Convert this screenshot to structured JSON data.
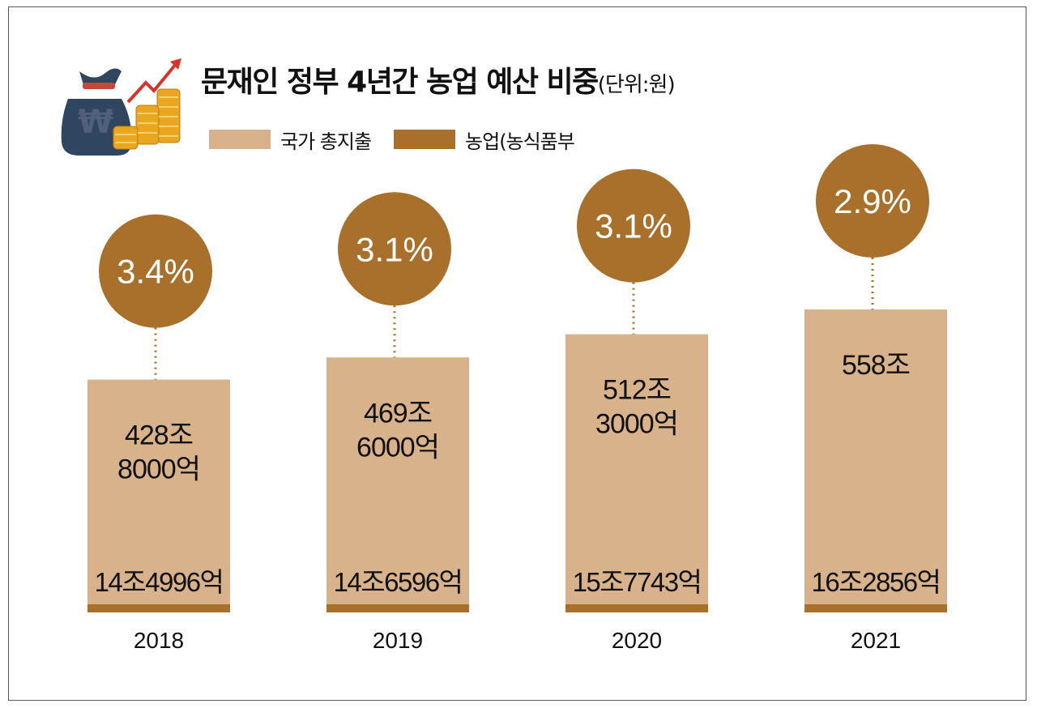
{
  "title": "문재인 정부 4년간 농업 예산 비중",
  "unit": "(단위:원)",
  "legend": [
    {
      "label": "국가 총지출",
      "color": "#d8b28a"
    },
    {
      "label": "농업(농식품부",
      "color": "#a8702a"
    }
  ],
  "icon": {
    "name": "money-bag-coins-growth-icon",
    "symbol": "₩"
  },
  "chart_data": {
    "type": "bar",
    "categories": [
      "2018",
      "2019",
      "2020",
      "2021"
    ],
    "series": [
      {
        "name": "국가 총지출",
        "values": [
          428.8,
          469.6,
          512.3,
          558
        ],
        "labels": [
          "428조\n8000억",
          "469조\n6000억",
          "512조\n3000억",
          "558조"
        ]
      },
      {
        "name": "농업(농식품부",
        "values": [
          14.4996,
          14.6596,
          15.7743,
          16.2856
        ],
        "labels": [
          "14조4996억",
          "14조6596억",
          "15조7743억",
          "16조2856억"
        ]
      }
    ],
    "share_labels": [
      "3.4%",
      "3.1%",
      "3.1%",
      "2.9%"
    ],
    "colors": {
      "total": "#d8b28a",
      "agri": "#a8702a",
      "bubble_text": "#ffffff"
    },
    "ylim": [
      0,
      558
    ]
  }
}
